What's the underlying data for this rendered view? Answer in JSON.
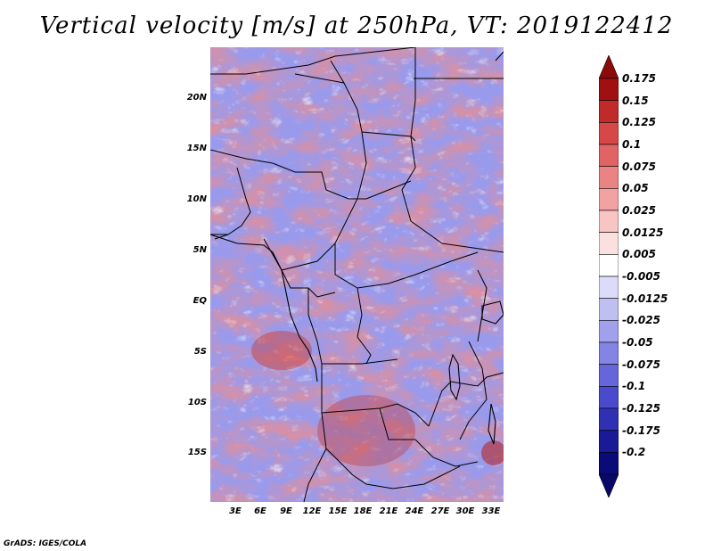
{
  "title": "Vertical velocity [m/s] at 250hPa, VT: 2019122412",
  "credit": "GrADS: IGES/COLA",
  "map": {
    "lat_labels": [
      "20N",
      "15N",
      "10N",
      "5N",
      "EQ",
      "5S",
      "10S",
      "15S"
    ],
    "lon_labels": [
      "3E",
      "6E",
      "9E",
      "12E",
      "15E",
      "18E",
      "21E",
      "24E",
      "27E",
      "30E",
      "33E"
    ]
  },
  "colorbar": {
    "labels": [
      "0.175",
      "0.15",
      "0.125",
      "0.1",
      "0.075",
      "0.05",
      "0.025",
      "0.0125",
      "0.005",
      "-0.005",
      "-0.0125",
      "-0.025",
      "-0.05",
      "-0.075",
      "-0.1",
      "-0.125",
      "-0.175",
      "-0.2"
    ],
    "colors": [
      "#a01010",
      "#c02a2a",
      "#d64848",
      "#e06464",
      "#ea8484",
      "#f2a2a2",
      "#f8c4c4",
      "#fce0e0",
      "#ffffff",
      "#dcdcfa",
      "#bfbff2",
      "#a0a0ec",
      "#8484e4",
      "#6666da",
      "#4a4acc",
      "#3030b4",
      "#1a1a96",
      "#0a0a78"
    ],
    "top_arrow_color": "#8c0a0a",
    "bottom_arrow_color": "#08086a"
  }
}
